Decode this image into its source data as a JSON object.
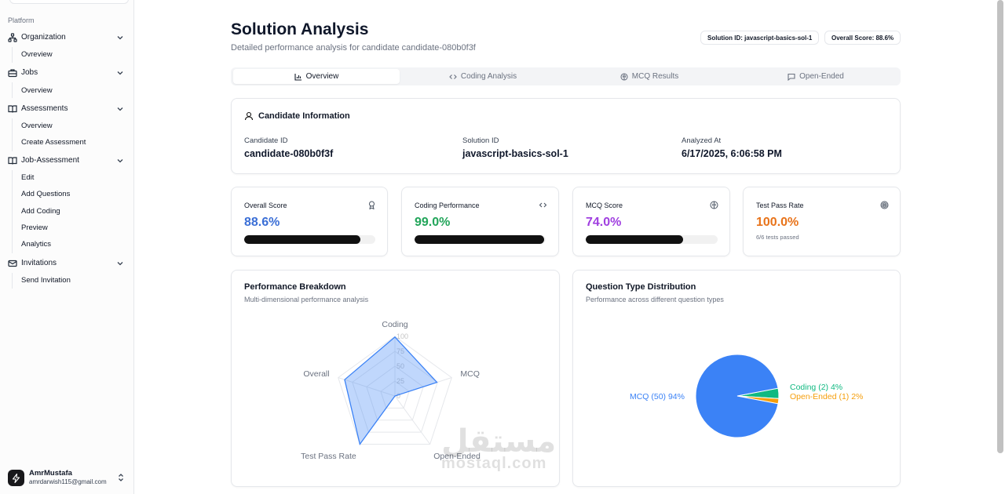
{
  "sidebar": {
    "section_label": "Platform",
    "groups": [
      {
        "label": "Organization",
        "icon": "org-icon",
        "items": [
          "Ovreview"
        ]
      },
      {
        "label": "Jobs",
        "icon": "briefcase-icon",
        "items": [
          "Overview"
        ]
      },
      {
        "label": "Assessments",
        "icon": "book-icon",
        "items": [
          "Overview",
          "Create Assessment"
        ]
      },
      {
        "label": "Job-Assessment",
        "icon": "book-icon",
        "items": [
          "Edit",
          "Add Questions",
          "Add Coding",
          "Preview",
          "Analytics"
        ]
      },
      {
        "label": "Invitations",
        "icon": "mail-icon",
        "items": [
          "Send Invitation"
        ]
      }
    ],
    "user": {
      "name": "AmrMustafa",
      "email": "amrdarwish115@gmail.com"
    }
  },
  "header": {
    "title": "Solution Analysis",
    "subtitle": "Detailed performance analysis for candidate candidate-080b0f3f",
    "solution_badge": "Solution ID: javascript-basics-sol-1",
    "score_badge": "Overall Score: 88.6%"
  },
  "tabs": [
    {
      "label": "Overview",
      "icon": "bar-chart-icon",
      "active": true
    },
    {
      "label": "Coding Analysis",
      "icon": "code-icon",
      "active": false
    },
    {
      "label": "MCQ Results",
      "icon": "brain-icon",
      "active": false
    },
    {
      "label": "Open-Ended",
      "icon": "message-icon",
      "active": false
    }
  ],
  "candidate": {
    "title": "Candidate Information",
    "fields": [
      {
        "label": "Candidate ID",
        "value": "candidate-080b0f3f"
      },
      {
        "label": "Solution ID",
        "value": "javascript-basics-sol-1"
      },
      {
        "label": "Analyzed At",
        "value": "6/17/2025, 6:06:58 PM"
      }
    ]
  },
  "metrics": [
    {
      "label": "Overall Score",
      "value": "88.6%",
      "progress": 88.6,
      "color": "#3b6fd6",
      "icon": "award-icon"
    },
    {
      "label": "Coding Performance",
      "value": "99.0%",
      "progress": 99.0,
      "color": "#22a55a",
      "icon": "code-icon"
    },
    {
      "label": "MCQ Score",
      "value": "74.0%",
      "progress": 74.0,
      "color": "#a03fe0",
      "icon": "brain-icon"
    },
    {
      "label": "Test Pass Rate",
      "value": "100.0%",
      "note": "6/6 tests passed",
      "color": "#e8731a",
      "icon": "target-icon"
    }
  ],
  "performance": {
    "title": "Performance Breakdown",
    "subtitle": "Multi-dimensional performance analysis"
  },
  "distribution": {
    "title": "Question Type Distribution",
    "subtitle": "Performance across different question types"
  },
  "chart_data": [
    {
      "type": "radar",
      "categories": [
        "Coding",
        "MCQ",
        "Open-Ended",
        "Test Pass Rate",
        "Overall"
      ],
      "values": [
        99,
        74,
        0,
        100,
        88.6
      ],
      "range": [
        0,
        100
      ],
      "ticks": [
        "0",
        "25",
        "50",
        "75",
        "100"
      ],
      "color": "#3b82f6"
    },
    {
      "type": "pie",
      "slices": [
        {
          "label": "MCQ (50) 94%",
          "value": 94,
          "color": "#3b82f6"
        },
        {
          "label": "Coding (2) 4%",
          "value": 4,
          "color": "#10b981"
        },
        {
          "label": "Open-Ended (1) 2%",
          "value": 2,
          "color": "#f59e0b"
        }
      ]
    }
  ],
  "watermark": {
    "arabic": "مستقل",
    "latin": "mostaql.com"
  }
}
